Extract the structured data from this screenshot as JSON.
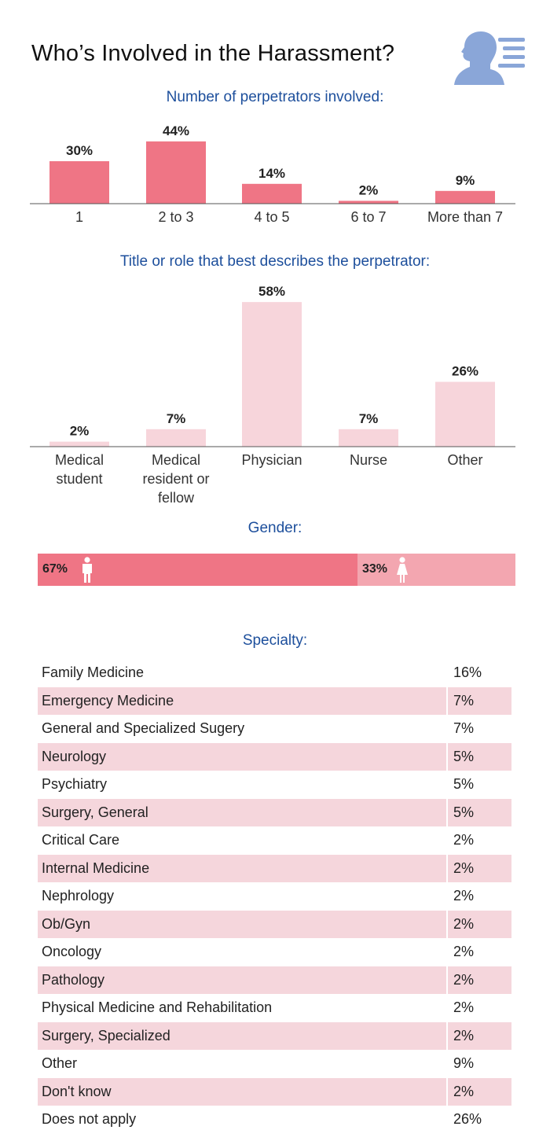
{
  "page": {
    "title": "Who’s Involved in the Harassment?",
    "logo_icon": "head-profile-text-icon"
  },
  "colors": {
    "accent_bar": "#ef7585",
    "light_bar": "#f7d5db",
    "female_bar": "#f3a6b0",
    "section_title": "#1d4f9c",
    "row_shade": "#f5d6dc"
  },
  "chart_data": [
    {
      "type": "bar",
      "title": "Number of perpetrators involved:",
      "categories": [
        "1",
        "2 to 3",
        "4 to 5",
        "6 to 7",
        "More than 7"
      ],
      "values": [
        30,
        44,
        14,
        2,
        9
      ],
      "value_labels": [
        "30%",
        "44%",
        "14%",
        "2%",
        "9%"
      ],
      "ylim": [
        0,
        100
      ],
      "unit": "%"
    },
    {
      "type": "bar",
      "title": "Title or role that best describes the perpetrator:",
      "categories": [
        [
          "Medical",
          "student"
        ],
        [
          "Medical",
          "resident or",
          "fellow"
        ],
        [
          "Physician"
        ],
        [
          "Nurse"
        ],
        [
          "Other"
        ]
      ],
      "values": [
        2,
        7,
        58,
        7,
        26
      ],
      "value_labels": [
        "2%",
        "7%",
        "58%",
        "7%",
        "26%"
      ],
      "ylim": [
        0,
        100
      ],
      "unit": "%"
    },
    {
      "type": "bar",
      "orientation": "stacked-horizontal",
      "title": "Gender:",
      "series": [
        {
          "name": "male",
          "value": 67,
          "label": "67%",
          "icon": "male-figure-icon"
        },
        {
          "name": "female",
          "value": 33,
          "label": "33%",
          "icon": "female-figure-icon"
        }
      ],
      "ylim": [
        0,
        100
      ]
    },
    {
      "type": "table",
      "title": "Specialty:",
      "rows": [
        {
          "name": "Family Medicine",
          "value": "16%"
        },
        {
          "name": "Emergency Medicine",
          "value": "7%"
        },
        {
          "name": "General and Specialized Sugery",
          "value": "7%"
        },
        {
          "name": "Neurology",
          "value": "5%"
        },
        {
          "name": "Psychiatry",
          "value": "5%"
        },
        {
          "name": "Surgery, General",
          "value": "5%"
        },
        {
          "name": "Critical Care",
          "value": "2%"
        },
        {
          "name": "Internal Medicine",
          "value": "2%"
        },
        {
          "name": "Nephrology",
          "value": "2%"
        },
        {
          "name": "Ob/Gyn",
          "value": "2%"
        },
        {
          "name": "Oncology",
          "value": "2%"
        },
        {
          "name": "Pathology",
          "value": "2%"
        },
        {
          "name": "Physical Medicine and Rehabilitation",
          "value": "2%"
        },
        {
          "name": "Surgery, Specialized",
          "value": "2%"
        },
        {
          "name": "Other",
          "value": "9%"
        },
        {
          "name": "Don't know",
          "value": "2%"
        },
        {
          "name": "Does not apply",
          "value": "26%"
        }
      ]
    }
  ]
}
